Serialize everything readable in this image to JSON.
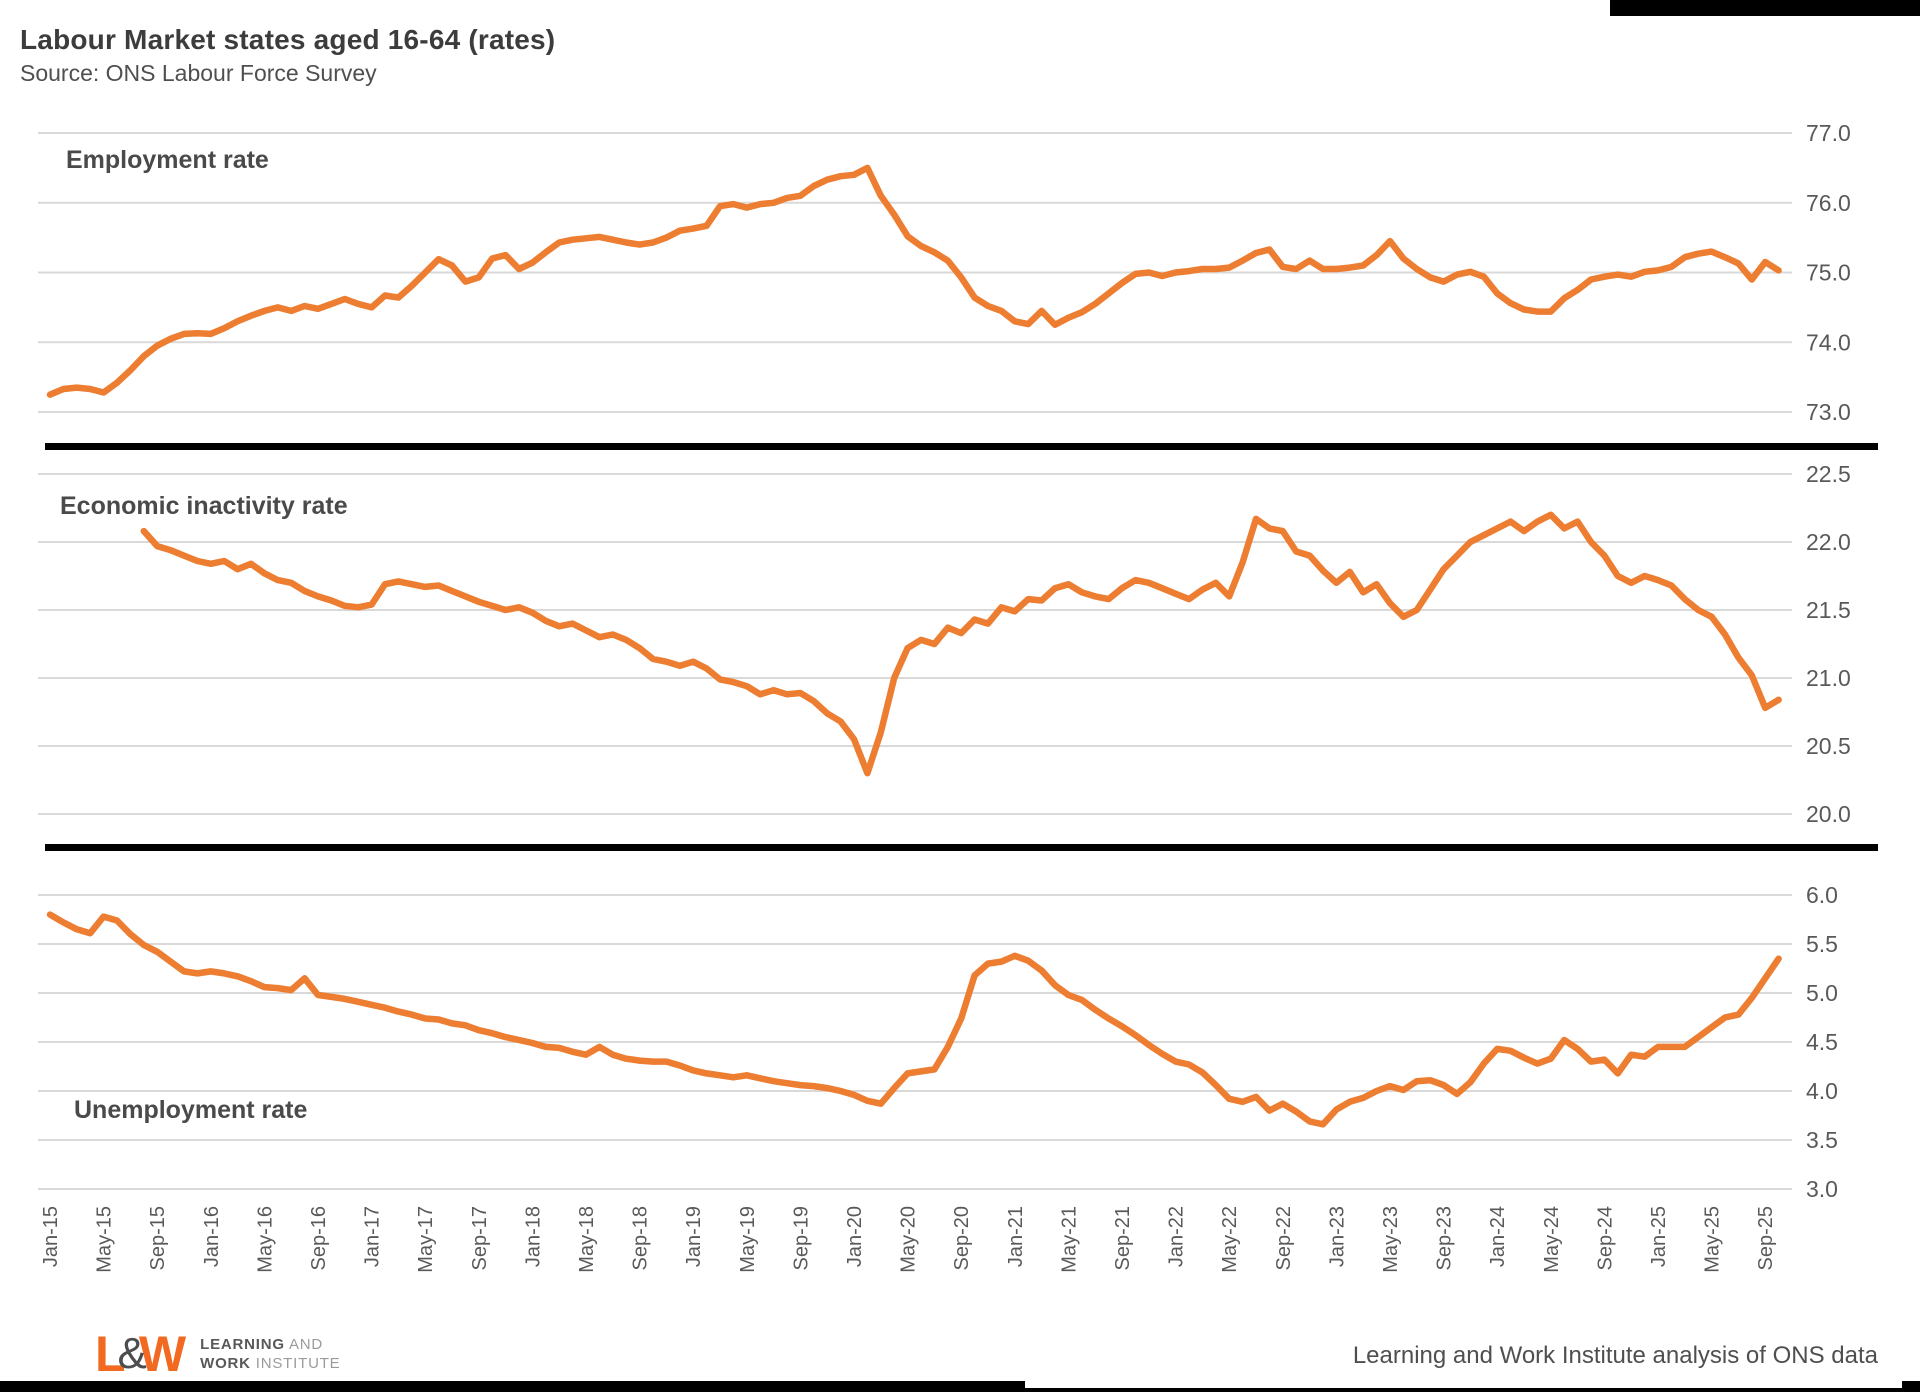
{
  "header": {
    "title": "Labour Market states aged 16-64 (rates)",
    "subtitle": "Source: ONS Labour Force Survey"
  },
  "footer": {
    "credit": "Learning and Work Institute analysis of ONS data",
    "logo": {
      "l": "L",
      "amp": "&",
      "w": "W",
      "line1_bold": "LEARNING",
      "line1_rest": " AND",
      "line2_bold": "WORK",
      "line2_rest": " INSTITUTE"
    }
  },
  "theme": {
    "line_color": "#ED7D31",
    "grid_color": "#D9D9D9",
    "tick_color": "#595959",
    "separator_color": "#000000",
    "background": "#FFFFFF"
  },
  "x_axis": {
    "first_month": "Jan-15",
    "last_month": "Oct-25",
    "tick_every_months": 4,
    "tick_labels": [
      "Jan-15",
      "May-15",
      "Sep-15",
      "Jan-16",
      "May-16",
      "Sep-16",
      "Jan-17",
      "May-17",
      "Sep-17",
      "Jan-18",
      "May-18",
      "Sep-18",
      "Jan-19",
      "May-19",
      "Sep-19",
      "Jan-20",
      "May-20",
      "Sep-20",
      "Jan-21",
      "May-21",
      "Sep-21",
      "Jan-22",
      "May-22",
      "Sep-22",
      "Jan-23",
      "May-23",
      "Sep-23",
      "Jan-24",
      "May-24",
      "Sep-24",
      "Jan-25",
      "May-25",
      "Sep-25"
    ]
  },
  "chart_data": [
    {
      "type": "line",
      "title": "Employment rate",
      "ylim": [
        73.0,
        77.0
      ],
      "ytick_labels": [
        "77.0",
        "76.0",
        "75.0",
        "74.0",
        "73.0"
      ],
      "grid": true,
      "legend": "none",
      "values": [
        73.25,
        73.33,
        73.35,
        73.33,
        73.28,
        73.42,
        73.6,
        73.8,
        73.95,
        74.05,
        74.12,
        74.13,
        74.12,
        74.2,
        74.3,
        74.38,
        74.45,
        74.5,
        74.45,
        74.52,
        74.48,
        74.55,
        74.62,
        74.55,
        74.5,
        74.67,
        74.64,
        74.81,
        75.0,
        75.19,
        75.1,
        74.87,
        74.93,
        75.2,
        75.25,
        75.05,
        75.14,
        75.29,
        75.43,
        75.47,
        75.49,
        75.51,
        75.47,
        75.43,
        75.4,
        75.43,
        75.5,
        75.6,
        75.63,
        75.67,
        75.95,
        75.98,
        75.93,
        75.98,
        76.0,
        76.07,
        76.1,
        76.24,
        76.33,
        76.38,
        76.4,
        76.5,
        76.1,
        75.83,
        75.52,
        75.38,
        75.29,
        75.17,
        74.93,
        74.64,
        74.52,
        74.45,
        74.3,
        74.26,
        74.45,
        74.25,
        74.35,
        74.43,
        74.55,
        74.7,
        74.85,
        74.98,
        75.0,
        74.95,
        75.0,
        75.02,
        75.05,
        75.05,
        75.07,
        75.17,
        75.28,
        75.33,
        75.08,
        75.05,
        75.17,
        75.05,
        75.05,
        75.07,
        75.1,
        75.25,
        75.45,
        75.2,
        75.05,
        74.93,
        74.87,
        74.97,
        75.01,
        74.94,
        74.7,
        74.56,
        74.47,
        74.44,
        74.44,
        74.63,
        74.75,
        74.9,
        74.94,
        74.97,
        74.94,
        75.01,
        75.03,
        75.08,
        75.22,
        75.27,
        75.3,
        75.22,
        75.13,
        74.9,
        75.15,
        75.03
      ]
    },
    {
      "type": "line",
      "title": "Economic inactivity rate",
      "ylim": [
        20.0,
        22.5
      ],
      "ytick_labels": [
        "22.5",
        "22.0",
        "21.5",
        "21.0",
        "20.5",
        "20.0"
      ],
      "grid": true,
      "legend": "none",
      "values": [
        null,
        null,
        null,
        null,
        null,
        null,
        null,
        22.08,
        21.97,
        21.94,
        21.9,
        21.86,
        21.84,
        21.86,
        21.8,
        21.84,
        21.77,
        21.72,
        21.7,
        21.64,
        21.6,
        21.57,
        21.53,
        21.52,
        21.54,
        21.69,
        21.71,
        21.69,
        21.67,
        21.68,
        21.64,
        21.6,
        21.56,
        21.53,
        21.5,
        21.52,
        21.48,
        21.42,
        21.38,
        21.4,
        21.35,
        21.3,
        21.32,
        21.28,
        21.22,
        21.14,
        21.12,
        21.09,
        21.12,
        21.07,
        20.99,
        20.97,
        20.94,
        20.88,
        20.91,
        20.88,
        20.89,
        20.83,
        20.74,
        20.68,
        20.55,
        20.3,
        20.6,
        21.0,
        21.22,
        21.28,
        21.25,
        21.37,
        21.33,
        21.43,
        21.4,
        21.52,
        21.49,
        21.58,
        21.57,
        21.66,
        21.69,
        21.63,
        21.6,
        21.58,
        21.66,
        21.72,
        21.7,
        21.66,
        21.62,
        21.58,
        21.65,
        21.7,
        21.6,
        21.85,
        22.17,
        22.1,
        22.08,
        21.93,
        21.9,
        21.79,
        21.7,
        21.78,
        21.63,
        21.69,
        21.55,
        21.45,
        21.5,
        21.65,
        21.8,
        21.9,
        22.0,
        22.05,
        22.1,
        22.15,
        22.08,
        22.15,
        22.2,
        22.1,
        22.15,
        22.0,
        21.9,
        21.75,
        21.7,
        21.75,
        21.72,
        21.68,
        21.58,
        21.5,
        21.45,
        21.32,
        21.15,
        21.02,
        20.78,
        20.84
      ]
    },
    {
      "type": "line",
      "title": "Unemployment rate",
      "ylim": [
        3.0,
        6.0
      ],
      "ytick_labels": [
        "6.0",
        "5.5",
        "5.0",
        "4.5",
        "4.0",
        "3.5",
        "3.0"
      ],
      "grid": true,
      "legend": "none",
      "values": [
        5.8,
        5.72,
        5.65,
        5.61,
        5.78,
        5.74,
        5.6,
        5.49,
        5.42,
        5.32,
        5.22,
        5.2,
        5.22,
        5.2,
        5.17,
        5.12,
        5.06,
        5.05,
        5.03,
        5.15,
        4.98,
        4.96,
        4.94,
        4.91,
        4.88,
        4.85,
        4.81,
        4.78,
        4.74,
        4.73,
        4.69,
        4.67,
        4.62,
        4.59,
        4.55,
        4.52,
        4.49,
        4.45,
        4.44,
        4.4,
        4.37,
        4.45,
        4.37,
        4.33,
        4.31,
        4.3,
        4.3,
        4.26,
        4.21,
        4.18,
        4.16,
        4.14,
        4.16,
        4.13,
        4.1,
        4.08,
        4.06,
        4.05,
        4.03,
        4.0,
        3.96,
        3.9,
        3.87,
        4.03,
        4.18,
        4.2,
        4.22,
        4.45,
        4.74,
        5.18,
        5.3,
        5.32,
        5.38,
        5.33,
        5.23,
        5.08,
        4.98,
        4.93,
        4.83,
        4.74,
        4.66,
        4.57,
        4.47,
        4.38,
        4.3,
        4.27,
        4.19,
        4.06,
        3.92,
        3.89,
        3.94,
        3.8,
        3.87,
        3.79,
        3.69,
        3.66,
        3.81,
        3.89,
        3.93,
        4.0,
        4.05,
        4.01,
        4.1,
        4.11,
        4.06,
        3.97,
        4.09,
        4.28,
        4.43,
        4.41,
        4.34,
        4.28,
        4.33,
        4.52,
        4.43,
        4.3,
        4.32,
        4.18,
        4.37,
        4.35,
        4.45,
        4.45,
        4.45,
        4.55,
        4.65,
        4.75,
        4.78,
        4.95,
        5.15,
        5.35
      ]
    }
  ]
}
